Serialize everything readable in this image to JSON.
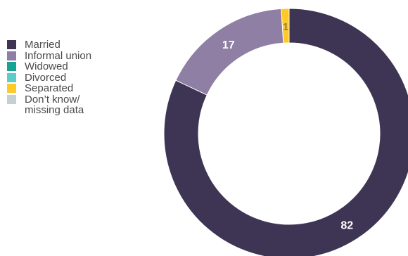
{
  "legend": {
    "items": [
      {
        "label": "Married",
        "color": "#3d3553"
      },
      {
        "label": "Informal union",
        "color": "#8f7fa4"
      },
      {
        "label": "Widowed",
        "color": "#16a394"
      },
      {
        "label": "Divorced",
        "color": "#5ccdc8"
      },
      {
        "label": "Separated",
        "color": "#ffc928"
      },
      {
        "label": "Don’t know/\nmissing data",
        "color": "#c6cfd4"
      }
    ]
  },
  "chart_data": {
    "type": "pie",
    "variant": "donut",
    "title": "",
    "legend_position": "left",
    "slices": [
      {
        "label": "Married",
        "value": 82,
        "color": "#3d3553",
        "data_label": "82"
      },
      {
        "label": "Informal union",
        "value": 17,
        "color": "#8f7fa4",
        "data_label": "17"
      },
      {
        "label": "Widowed",
        "value": 0,
        "color": "#16a394",
        "data_label": ""
      },
      {
        "label": "Divorced",
        "value": 0,
        "color": "#5ccdc8",
        "data_label": ""
      },
      {
        "label": "Separated",
        "value": 1,
        "color": "#ffc928",
        "data_label": "1"
      },
      {
        "label": "Don’t know/ missing data",
        "value": 0,
        "color": "#c6cfd4",
        "data_label": ""
      }
    ]
  }
}
